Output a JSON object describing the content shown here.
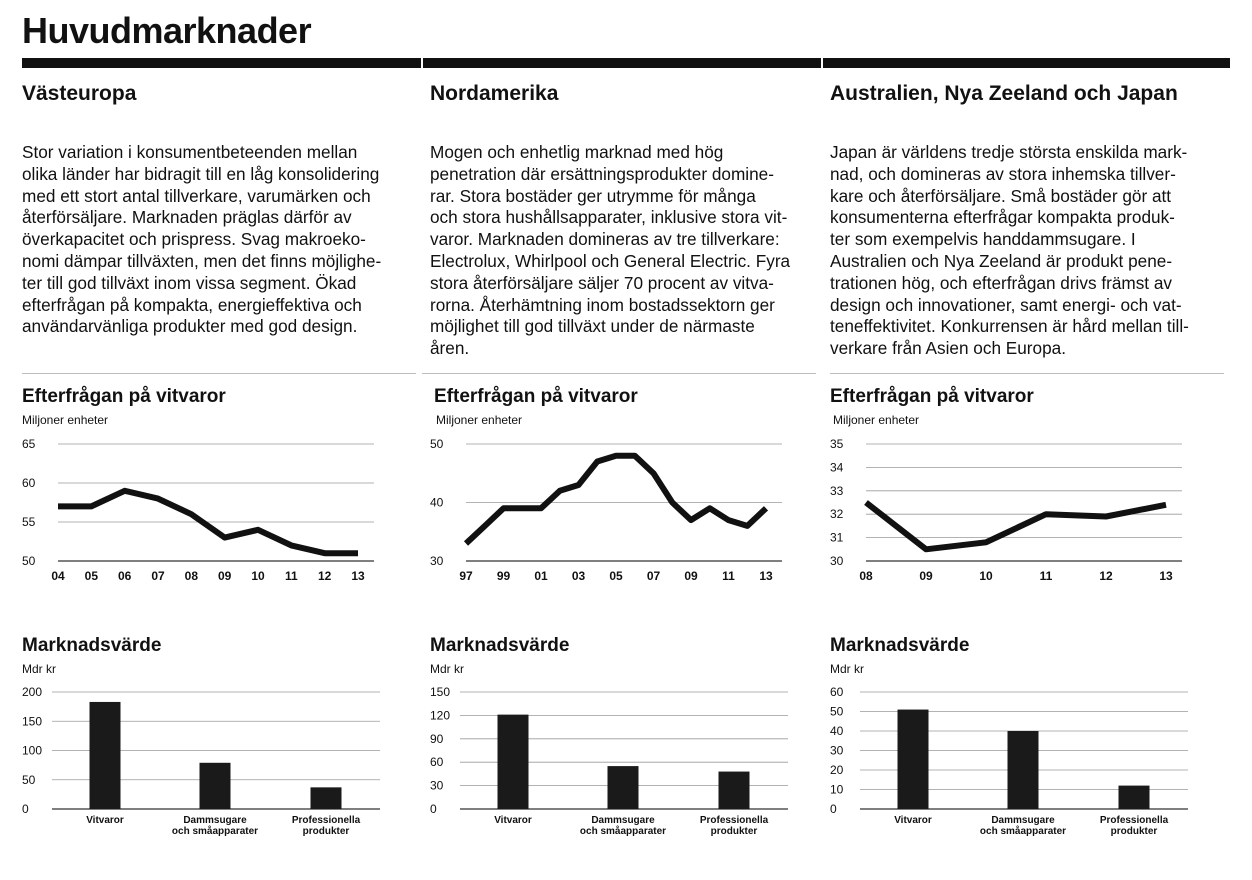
{
  "page": {
    "title": "Huvudmarknader"
  },
  "regions": [
    {
      "title": "Västeuropa",
      "lines": [
        "Stor variation i konsumentbeteenden mellan",
        "olika länder har bidragit till en låg konsolidering",
        "med ett stort antal tillverkare, varumärken och",
        "återförsäljare. Marknaden präglas därför av",
        "överkapacitet och prispress. Svag makroeko-",
        "nomi dämpar tillväxten, men det finns möjlighe-",
        "ter till god tillväxt inom vissa segment. Ökad",
        "efterfrågan på kompakta, energieffektiva och",
        "användarvänliga produkter med god design."
      ]
    },
    {
      "title": "Nordamerika",
      "lines": [
        "Mogen och enhetlig marknad med hög",
        "penetration där ersättningsprodukter domine-",
        "rar. Stora bostäder ger utrymme för många",
        "och stora hushållsapparater, inklusive stora vit-",
        "varor. Marknaden domineras av tre tillverkare:",
        "Electrolux, Whirlpool och General Electric. Fyra",
        "stora återförsäljare säljer 70 procent av vitva-",
        "rorna. Återhämtning inom bostadssektorn ger",
        "möjlighet till god tillväxt under de närmaste",
        "åren."
      ]
    },
    {
      "title": "Australien, Nya Zeeland och Japan",
      "lines": [
        "Japan är världens tredje största enskilda mark-",
        "nad, och domineras av stora inhemska tillver-",
        "kare och återförsäljare. Små bostäder gör att",
        "konsumenterna efterfrågar kompakta produk-",
        "ter som exempelvis handdammsugare. I",
        "Australien och Nya Zeeland är produkt pene-",
        "trationen hög, och efterfrågan drivs främst av",
        "design och innovationer, samt energi- och vat-",
        "teneffektivitet. Konkurrensen är hård mellan till-",
        "verkare från Asien och Europa."
      ]
    }
  ],
  "chart_data": [
    {
      "type": "line",
      "title": "Efterfrågan på vitvaror",
      "ylabel": "Miljoner enheter",
      "ylim": [
        50,
        65
      ],
      "yticks": [
        50,
        55,
        60,
        65
      ],
      "x": [
        "04",
        "05",
        "06",
        "07",
        "08",
        "09",
        "10",
        "11",
        "12",
        "13"
      ],
      "xtick_labels": [
        "04",
        "05",
        "06",
        "07",
        "08",
        "09",
        "10",
        "11",
        "12",
        "13"
      ],
      "values": [
        57,
        57,
        59,
        58,
        56,
        53,
        54,
        52,
        51,
        51
      ],
      "grid": true,
      "color": "#111111"
    },
    {
      "type": "line",
      "title": "Efterfrågan på vitvaror",
      "ylabel": "Miljoner enheter",
      "ylim": [
        30,
        50
      ],
      "yticks": [
        30,
        40,
        50
      ],
      "x": [
        "97",
        "98",
        "99",
        "00",
        "01",
        "02",
        "03",
        "04",
        "05",
        "06",
        "07",
        "08",
        "09",
        "10",
        "11",
        "12",
        "13"
      ],
      "xtick_labels": [
        "97",
        "99",
        "01",
        "03",
        "05",
        "07",
        "09",
        "11",
        "13"
      ],
      "values": [
        33,
        36,
        39,
        39,
        39,
        42,
        43,
        47,
        48,
        48,
        45,
        40,
        37,
        39,
        37,
        36,
        39
      ],
      "grid": true,
      "color": "#111111"
    },
    {
      "type": "line",
      "title": "Efterfrågan på vitvaror",
      "ylabel": "Miljoner enheter",
      "ylim": [
        30,
        35
      ],
      "yticks": [
        30,
        31,
        32,
        33,
        34,
        35
      ],
      "x": [
        "08",
        "09",
        "10",
        "11",
        "12",
        "13"
      ],
      "xtick_labels": [
        "08",
        "09",
        "10",
        "11",
        "12",
        "13"
      ],
      "values": [
        32.5,
        30.5,
        30.8,
        32.0,
        31.9,
        32.4
      ],
      "grid": true,
      "color": "#111111"
    },
    {
      "type": "bar",
      "title": "Marknadsvärde",
      "ylabel": "Mdr kr",
      "ylim": [
        0,
        200
      ],
      "yticks": [
        0,
        50,
        100,
        150,
        200
      ],
      "categories": [
        [
          "Vitvaror"
        ],
        [
          "Dammsugare",
          "och småapparater"
        ],
        [
          "Professionella",
          "produkter"
        ]
      ],
      "values": [
        183,
        79,
        37
      ],
      "grid": true,
      "color": "#1a1a1a"
    },
    {
      "type": "bar",
      "title": "Marknadsvärde",
      "ylabel": "Mdr kr",
      "ylim": [
        0,
        150
      ],
      "yticks": [
        0,
        30,
        60,
        90,
        120,
        150
      ],
      "categories": [
        [
          "Vitvaror"
        ],
        [
          "Dammsugare",
          "och småapparater"
        ],
        [
          "Professionella",
          "produkter"
        ]
      ],
      "values": [
        121,
        55,
        48
      ],
      "grid": true,
      "color": "#1a1a1a"
    },
    {
      "type": "bar",
      "title": "Marknadsvärde",
      "ylabel": "Mdr kr",
      "ylim": [
        0,
        60
      ],
      "yticks": [
        0,
        10,
        20,
        30,
        40,
        50,
        60
      ],
      "categories": [
        [
          "Vitvaror"
        ],
        [
          "Dammsugare",
          "och småapparater"
        ],
        [
          "Professionella",
          "produkter"
        ]
      ],
      "values": [
        51,
        40,
        12
      ],
      "grid": true,
      "color": "#1a1a1a"
    }
  ]
}
